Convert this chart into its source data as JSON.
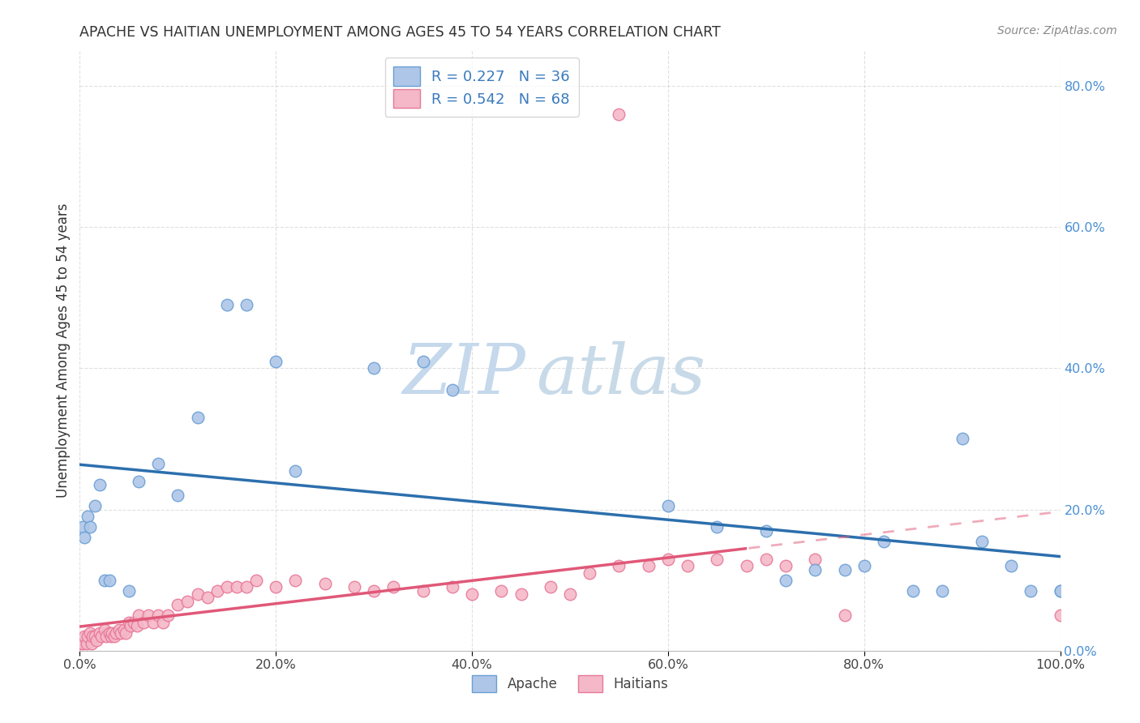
{
  "title": "APACHE VS HAITIAN UNEMPLOYMENT AMONG AGES 45 TO 54 YEARS CORRELATION CHART",
  "source": "Source: ZipAtlas.com",
  "ylabel": "Unemployment Among Ages 45 to 54 years",
  "xlim": [
    0.0,
    1.0
  ],
  "ylim": [
    0.0,
    0.85
  ],
  "apache_R": 0.227,
  "apache_N": 36,
  "haitian_R": 0.542,
  "haitian_N": 68,
  "apache_color": "#aec6e8",
  "apache_edge": "#6a9fd4",
  "haitian_color": "#f4b8c8",
  "haitian_edge": "#e87898",
  "trendline_apache_color": "#2c6fad",
  "trendline_haitian_color": "#e05878",
  "apache_x": [
    0.003,
    0.005,
    0.008,
    0.01,
    0.015,
    0.02,
    0.025,
    0.03,
    0.05,
    0.06,
    0.08,
    0.1,
    0.12,
    0.15,
    0.17,
    0.2,
    0.22,
    0.3,
    0.35,
    0.38,
    0.6,
    0.65,
    0.7,
    0.72,
    0.75,
    0.78,
    0.8,
    0.82,
    0.85,
    0.88,
    0.9,
    0.92,
    0.95,
    0.97,
    1.0,
    1.0
  ],
  "apache_y": [
    0.175,
    0.16,
    0.19,
    0.175,
    0.205,
    0.235,
    0.1,
    0.1,
    0.085,
    0.24,
    0.265,
    0.22,
    0.33,
    0.49,
    0.49,
    0.41,
    0.255,
    0.4,
    0.41,
    0.37,
    0.205,
    0.175,
    0.17,
    0.1,
    0.115,
    0.115,
    0.12,
    0.155,
    0.085,
    0.085,
    0.3,
    0.155,
    0.12,
    0.085,
    0.085,
    0.085
  ],
  "haitian_x": [
    0.0,
    0.003,
    0.005,
    0.007,
    0.008,
    0.01,
    0.012,
    0.013,
    0.015,
    0.017,
    0.02,
    0.022,
    0.025,
    0.027,
    0.03,
    0.032,
    0.033,
    0.035,
    0.037,
    0.04,
    0.042,
    0.045,
    0.047,
    0.05,
    0.052,
    0.055,
    0.058,
    0.06,
    0.065,
    0.07,
    0.075,
    0.08,
    0.085,
    0.09,
    0.1,
    0.11,
    0.12,
    0.13,
    0.14,
    0.15,
    0.16,
    0.17,
    0.18,
    0.2,
    0.22,
    0.25,
    0.28,
    0.3,
    0.32,
    0.35,
    0.38,
    0.4,
    0.43,
    0.45,
    0.48,
    0.5,
    0.52,
    0.55,
    0.58,
    0.6,
    0.62,
    0.65,
    0.68,
    0.7,
    0.72,
    0.75,
    0.78,
    1.0
  ],
  "haitian_y": [
    0.01,
    0.01,
    0.02,
    0.01,
    0.02,
    0.025,
    0.01,
    0.02,
    0.02,
    0.015,
    0.025,
    0.02,
    0.03,
    0.02,
    0.025,
    0.02,
    0.025,
    0.02,
    0.025,
    0.03,
    0.025,
    0.03,
    0.025,
    0.04,
    0.035,
    0.04,
    0.035,
    0.05,
    0.04,
    0.05,
    0.04,
    0.05,
    0.04,
    0.05,
    0.065,
    0.07,
    0.08,
    0.075,
    0.085,
    0.09,
    0.09,
    0.09,
    0.1,
    0.09,
    0.1,
    0.095,
    0.09,
    0.085,
    0.09,
    0.085,
    0.09,
    0.08,
    0.085,
    0.08,
    0.09,
    0.08,
    0.11,
    0.12,
    0.12,
    0.13,
    0.12,
    0.13,
    0.12,
    0.13,
    0.12,
    0.13,
    0.05,
    0.05
  ],
  "haitian_special_x": [
    0.55
  ],
  "haitian_special_y": [
    0.76
  ],
  "grid_color": "#cccccc",
  "background_color": "#ffffff",
  "watermark_zip_color": "#c5d8ec",
  "watermark_atlas_color": "#c8dae8"
}
